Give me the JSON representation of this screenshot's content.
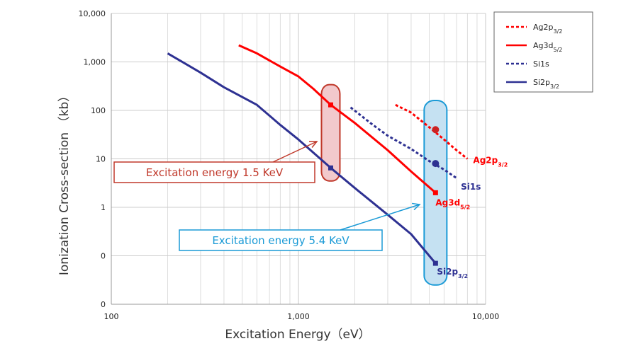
{
  "chart_data": {
    "type": "line",
    "xlabel": "Excitation Energy（eV）",
    "ylabel": "Ionization Cross-section （kb）",
    "x_scale": "log",
    "y_scale": "log",
    "xlim": [
      100,
      10000
    ],
    "ylim": [
      0.01,
      10000
    ],
    "x_ticks": [
      {
        "value": 100,
        "label": "100"
      },
      {
        "value": 1000,
        "label": "1,000"
      },
      {
        "value": 10000,
        "label": "10,000"
      }
    ],
    "y_ticks": [
      {
        "value": 10000,
        "label": "10,000"
      },
      {
        "value": 1000,
        "label": "1,000"
      },
      {
        "value": 100,
        "label": "100"
      },
      {
        "value": 10,
        "label": "10"
      },
      {
        "value": 1,
        "label": "1"
      },
      {
        "value": 0.1,
        "label": "0"
      },
      {
        "value": 0.01,
        "label": "0"
      }
    ],
    "grid": true,
    "legend_position": "top-right",
    "series": [
      {
        "key": "ag2p",
        "name": "Ag2p",
        "sub": "3/2",
        "color": "#ff0000",
        "dash": true,
        "x": [
          3300,
          4000,
          5000,
          6000,
          7000,
          8000
        ],
        "y": [
          130,
          90,
          45,
          25,
          15,
          10
        ]
      },
      {
        "key": "ag3d",
        "name": "Ag3d",
        "sub": "5/2",
        "color": "#ff0000",
        "dash": false,
        "x": [
          480,
          600,
          800,
          1000,
          1200,
          1487,
          2000,
          3000,
          4000,
          5400
        ],
        "y": [
          2200,
          1500,
          800,
          500,
          280,
          130,
          55,
          15,
          5.5,
          2
        ]
      },
      {
        "key": "si1s",
        "name": "Si1s",
        "sub": "",
        "color": "#2e3192",
        "dash": true,
        "x": [
          1900,
          2500,
          3000,
          4000,
          5000,
          6000,
          7000
        ],
        "y": [
          115,
          50,
          30,
          16,
          9,
          6,
          4
        ]
      },
      {
        "key": "si2p",
        "name": "Si2p",
        "sub": "3/2",
        "color": "#2e3192",
        "dash": false,
        "x": [
          200,
          300,
          400,
          600,
          800,
          1000,
          1487,
          2000,
          3000,
          4000,
          5400
        ],
        "y": [
          1500,
          600,
          300,
          130,
          50,
          25,
          6.5,
          2.5,
          0.7,
          0.28,
          0.07
        ]
      }
    ],
    "markers": [
      {
        "x": 1487,
        "y": 130,
        "color": "#ff0000",
        "shape": "square"
      },
      {
        "x": 1487,
        "y": 6.5,
        "color": "#2e3192",
        "shape": "square"
      },
      {
        "x": 5400,
        "y": 40,
        "color": "#cc2222",
        "shape": "circle"
      },
      {
        "x": 5400,
        "y": 8,
        "color": "#2e3192",
        "shape": "circle"
      },
      {
        "x": 5400,
        "y": 2,
        "color": "#ff0000",
        "shape": "square"
      },
      {
        "x": 5400,
        "y": 0.07,
        "color": "#2e3192",
        "shape": "square"
      }
    ],
    "end_labels": [
      {
        "series": "ag2p",
        "text": "Ag2p",
        "sub": "3/2",
        "color": "#ff0000"
      },
      {
        "series": "si1s",
        "text": "Si1s",
        "sub": "",
        "color": "#2e3192"
      },
      {
        "series": "ag3d",
        "text": "Ag3d",
        "sub": "5/2",
        "color": "#ff0000"
      },
      {
        "series": "si2p",
        "text": "Si2p",
        "sub": "3/2",
        "color": "#2e3192"
      }
    ],
    "annotations": [
      {
        "key": "soft",
        "text": "Excitation energy 1.5 KeV",
        "x_energy": 1487,
        "y_range": [
          3.5,
          340
        ],
        "color": "#c0392b",
        "fill": "#f2c9cc"
      },
      {
        "key": "hard",
        "text": "Excitation energy 5.4 KeV",
        "x_energy": 5400,
        "y_range": [
          0.025,
          160
        ],
        "color": "#1a9ad6",
        "fill": "#c5e1f2"
      }
    ]
  }
}
